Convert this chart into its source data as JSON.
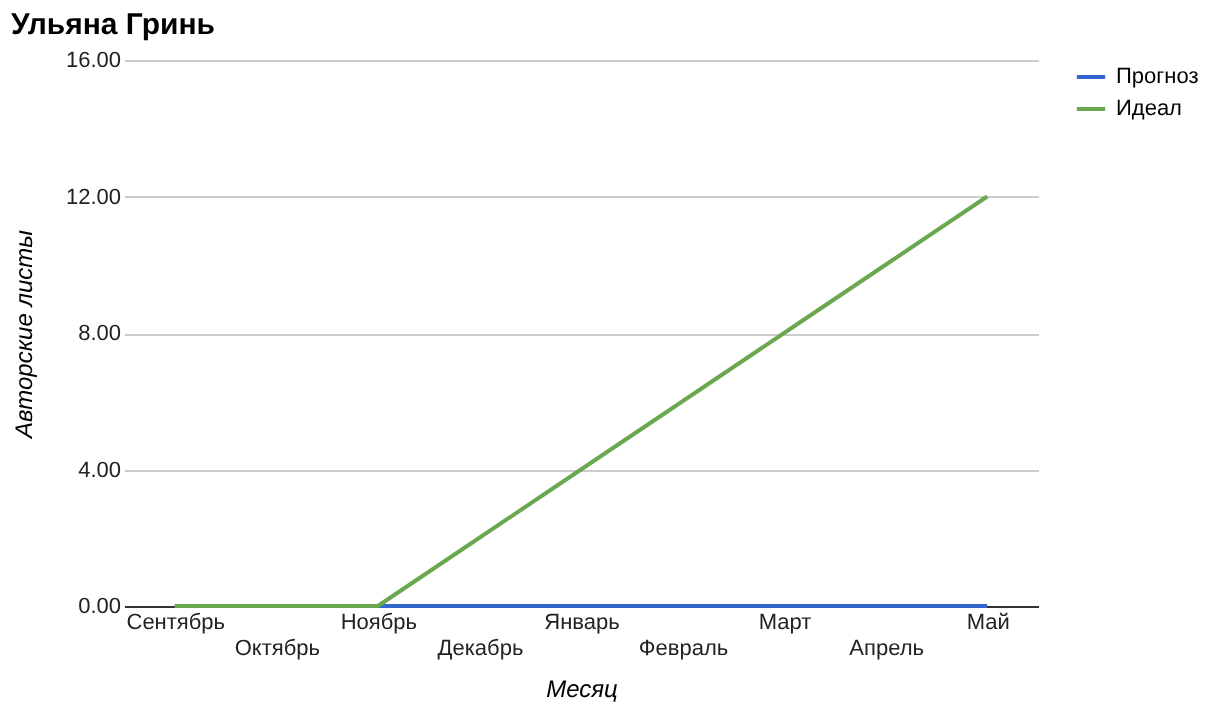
{
  "chart_data": {
    "type": "line",
    "title": "Ульяна Гринь",
    "xlabel": "Месяц",
    "ylabel": "Авторские листы",
    "categories": [
      "Сентябрь",
      "Октябрь",
      "Ноябрь",
      "Декабрь",
      "Январь",
      "Февраль",
      "Март",
      "Апрель",
      "Май"
    ],
    "series": [
      {
        "name": "Прогноз",
        "color": "#3366cc",
        "values": [
          0,
          0,
          0,
          0,
          0,
          0,
          0,
          0,
          0
        ]
      },
      {
        "name": "Идеал",
        "color": "#6aa84f",
        "values": [
          0,
          0,
          0,
          2,
          4,
          6,
          8,
          10,
          12
        ]
      }
    ],
    "ylim": [
      0,
      16
    ],
    "yticks": [
      {
        "value": 0,
        "label": "0.00"
      },
      {
        "value": 4,
        "label": "4.00"
      },
      {
        "value": 8,
        "label": "8.00"
      },
      {
        "value": 12,
        "label": "12.00"
      },
      {
        "value": 16,
        "label": "16.00"
      }
    ],
    "grid": "y",
    "legend": "top right",
    "marker": "none",
    "line_style": "solid"
  }
}
